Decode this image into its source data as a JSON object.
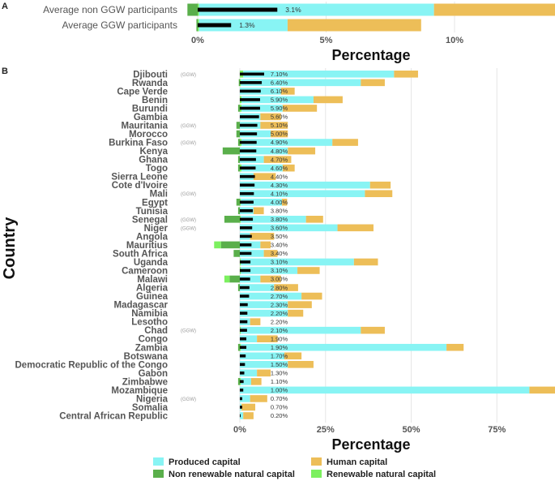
{
  "colors": {
    "produced": "#88F4F4",
    "human": "#EDBE58",
    "nonrenewable": "#5AAF4B",
    "renewable": "#7CF05F",
    "marker": "#000000",
    "grid": "#E6E6E6"
  },
  "panel_a_label": "A",
  "panel_b_label": "B",
  "ggw_tag": "(GGW)",
  "chart_data": [
    {
      "type": "bar",
      "orientation": "horizontal-stacked",
      "title": "",
      "xlabel": "Percentage",
      "ylabel": "",
      "xlim": [
        -1,
        14.2
      ],
      "xticks": [
        "0%",
        "5%",
        "10%"
      ],
      "xtick_values": [
        0,
        5,
        10
      ],
      "grid": true,
      "series_order": [
        "nonrenewable",
        "renewable",
        "produced",
        "human"
      ],
      "categories": [
        "Average non GGW participants",
        "Average GGW participants"
      ],
      "series": [
        {
          "name": "Non renewable natural capital",
          "values": [
            -0.4,
            -0.05
          ]
        },
        {
          "name": "Renewable natural capital",
          "values": [
            0.05,
            0.05
          ]
        },
        {
          "name": "Produced capital",
          "values": [
            9.15,
            3.45
          ]
        },
        {
          "name": "Human capital",
          "values": [
            5.0,
            5.2
          ]
        }
      ],
      "marker_values": [
        3.1,
        1.3
      ],
      "labels": [
        "3.1%",
        "1.3%"
      ]
    },
    {
      "type": "bar",
      "orientation": "horizontal-stacked",
      "title": "",
      "xlabel": "Percentage",
      "ylabel": "Country",
      "xlim": [
        -7,
        92
      ],
      "xticks": [
        "0%",
        "25%",
        "50%",
        "75%"
      ],
      "xtick_values": [
        0,
        25,
        50,
        75
      ],
      "grid": true,
      "legend": {
        "position": "bottom",
        "entries": [
          "Produced capital",
          "Human capital",
          "Non renewable natural capital",
          "Renewable natural capital"
        ]
      },
      "countries": [
        {
          "name": "Djibouti",
          "ggw": true,
          "nonrenewable": 0,
          "renewable": 1,
          "produced": 44,
          "human": 7,
          "marker": 7.1,
          "label": "7.10%"
        },
        {
          "name": "Rwanda",
          "ggw": false,
          "nonrenewable": -0.3,
          "renewable": 0.3,
          "produced": 35,
          "human": 7,
          "marker": 6.4,
          "label": "6.40%"
        },
        {
          "name": "Cape Verde",
          "ggw": false,
          "nonrenewable": 0,
          "renewable": 0,
          "produced": 12,
          "human": 4,
          "marker": 6.1,
          "label": "6.10%"
        },
        {
          "name": "Benin",
          "ggw": false,
          "nonrenewable": 0,
          "renewable": 0.5,
          "produced": 21,
          "human": 8.5,
          "marker": 5.9,
          "label": "5.90%"
        },
        {
          "name": "Burundi",
          "ggw": false,
          "nonrenewable": -0.5,
          "renewable": 0.5,
          "produced": 12,
          "human": 10,
          "marker": 5.9,
          "label": "5.90%"
        },
        {
          "name": "Gambia",
          "ggw": false,
          "nonrenewable": 0,
          "renewable": 0,
          "produced": 6,
          "human": 6,
          "marker": 5.6,
          "label": "5.60%"
        },
        {
          "name": "Mauritania",
          "ggw": true,
          "nonrenewable": -1,
          "renewable": 0,
          "produced": 6,
          "human": 8,
          "marker": 5.1,
          "label": "5.10%"
        },
        {
          "name": "Morocco",
          "ggw": false,
          "nonrenewable": -1,
          "renewable": 0,
          "produced": 9,
          "human": 5,
          "marker": 5.0,
          "label": "5.00%"
        },
        {
          "name": "Burkina Faso",
          "ggw": true,
          "nonrenewable": -0.5,
          "renewable": 0.5,
          "produced": 26.5,
          "human": 7.5,
          "marker": 4.9,
          "label": "4.90%"
        },
        {
          "name": "Kenya",
          "ggw": false,
          "nonrenewable": -5,
          "renewable": 0,
          "produced": 14,
          "human": 8,
          "marker": 4.8,
          "label": "4.80%"
        },
        {
          "name": "Ghana",
          "ggw": false,
          "nonrenewable": -0.5,
          "renewable": 0,
          "produced": 7,
          "human": 8,
          "marker": 4.7,
          "label": "4.70%"
        },
        {
          "name": "Togo",
          "ggw": false,
          "nonrenewable": -0.5,
          "renewable": 0.5,
          "produced": 12,
          "human": 3.5,
          "marker": 4.6,
          "label": "4.60%"
        },
        {
          "name": "Sierra Leone",
          "ggw": false,
          "nonrenewable": 0,
          "renewable": 0,
          "produced": 4,
          "human": 6.5,
          "marker": 4.4,
          "label": "4.40%"
        },
        {
          "name": "Cote d'Ivoire",
          "ggw": false,
          "nonrenewable": 0,
          "renewable": 0,
          "produced": 38,
          "human": 6,
          "marker": 4.3,
          "label": "4.30%"
        },
        {
          "name": "Mali",
          "ggw": true,
          "nonrenewable": 0,
          "renewable": 0,
          "produced": 36.5,
          "human": 8,
          "marker": 4.1,
          "label": "4.10%"
        },
        {
          "name": "Egypt",
          "ggw": false,
          "nonrenewable": -1,
          "renewable": 0.3,
          "produced": 12,
          "human": 1.5,
          "marker": 4.0,
          "label": "4.00%"
        },
        {
          "name": "Tunisia",
          "ggw": false,
          "nonrenewable": -0.5,
          "renewable": 0,
          "produced": 4,
          "human": 3,
          "marker": 3.8,
          "label": "3.80%"
        },
        {
          "name": "Senegal",
          "ggw": true,
          "nonrenewable": -4.5,
          "renewable": 0.3,
          "produced": 19,
          "human": 5,
          "marker": 3.8,
          "label": "3.80%"
        },
        {
          "name": "Niger",
          "ggw": true,
          "nonrenewable": 0,
          "renewable": 0,
          "produced": 28.5,
          "human": 10.5,
          "marker": 3.6,
          "label": "3.60%"
        },
        {
          "name": "Angola",
          "ggw": false,
          "nonrenewable": 0,
          "renewable": 0,
          "produced": 3,
          "human": 7,
          "marker": 3.5,
          "label": "3.50%"
        },
        {
          "name": "Mauritius",
          "ggw": false,
          "nonrenewable": -5.5,
          "renewable": -2,
          "produced": 6,
          "human": 3,
          "marker": 3.4,
          "label": "3.40%"
        },
        {
          "name": "South Africa",
          "ggw": false,
          "nonrenewable": -1.8,
          "renewable": 0,
          "produced": 7,
          "human": 4,
          "marker": 3.4,
          "label": "3.40%"
        },
        {
          "name": "Uganda",
          "ggw": false,
          "nonrenewable": 0,
          "renewable": 0.3,
          "produced": 33,
          "human": 7,
          "marker": 3.1,
          "label": "3.10%"
        },
        {
          "name": "Cameroon",
          "ggw": false,
          "nonrenewable": 0,
          "renewable": 0.3,
          "produced": 16.5,
          "human": 6.5,
          "marker": 3.1,
          "label": "3.10%"
        },
        {
          "name": "Malawi",
          "ggw": false,
          "nonrenewable": -3,
          "renewable": -1.5,
          "produced": 6,
          "human": 6,
          "marker": 3.0,
          "label": "3.00%"
        },
        {
          "name": "Algeria",
          "ggw": false,
          "nonrenewable": -0.5,
          "renewable": 0,
          "produced": 10,
          "human": 7,
          "marker": 2.8,
          "label": "2.80%"
        },
        {
          "name": "Guinea",
          "ggw": false,
          "nonrenewable": 0,
          "renewable": 0,
          "produced": 18,
          "human": 6,
          "marker": 2.7,
          "label": "2.70%"
        },
        {
          "name": "Madagascar",
          "ggw": false,
          "nonrenewable": 0,
          "renewable": 0,
          "produced": 14,
          "human": 7,
          "marker": 2.3,
          "label": "2.30%"
        },
        {
          "name": "Namibia",
          "ggw": false,
          "nonrenewable": 0,
          "renewable": 0,
          "produced": 14,
          "human": 4.5,
          "marker": 2.2,
          "label": "2.20%"
        },
        {
          "name": "Lesotho",
          "ggw": false,
          "nonrenewable": 0,
          "renewable": 0,
          "produced": 3,
          "human": 3,
          "marker": 2.2,
          "label": "2.20%"
        },
        {
          "name": "Chad",
          "ggw": true,
          "nonrenewable": 0,
          "renewable": 0.3,
          "produced": 35,
          "human": 7,
          "marker": 2.1,
          "label": "2.10%"
        },
        {
          "name": "Congo",
          "ggw": false,
          "nonrenewable": 0,
          "renewable": 0,
          "produced": 5,
          "human": 6,
          "marker": 1.9,
          "label": "1.90%"
        },
        {
          "name": "Zambia",
          "ggw": false,
          "nonrenewable": -0.5,
          "renewable": 0.3,
          "produced": 60,
          "human": 5,
          "marker": 1.9,
          "label": "1.90%"
        },
        {
          "name": "Botswana",
          "ggw": false,
          "nonrenewable": 0,
          "renewable": 0,
          "produced": 13,
          "human": 5,
          "marker": 1.7,
          "label": "1.70%"
        },
        {
          "name": "Democratic Republic of the Congo",
          "ggw": false,
          "nonrenewable": 0,
          "renewable": 0,
          "produced": 14,
          "human": 7.5,
          "marker": 1.5,
          "label": "1.50%"
        },
        {
          "name": "Gabon",
          "ggw": false,
          "nonrenewable": 0,
          "renewable": 0,
          "produced": 5,
          "human": 4,
          "marker": 1.3,
          "label": "1.30%"
        },
        {
          "name": "Zimbabwe",
          "ggw": false,
          "nonrenewable": -0.5,
          "renewable": 0.3,
          "produced": 3,
          "human": 3,
          "marker": 1.1,
          "label": "1.10%"
        },
        {
          "name": "Mozambique",
          "ggw": false,
          "nonrenewable": 0,
          "renewable": 0,
          "produced": 84.5,
          "human": 7.5,
          "marker": 1.0,
          "label": "1.00%"
        },
        {
          "name": "Nigeria",
          "ggw": true,
          "nonrenewable": 0,
          "renewable": 0,
          "produced": 3,
          "human": 5,
          "marker": 0.7,
          "label": "0.70%"
        },
        {
          "name": "Somalia",
          "ggw": false,
          "nonrenewable": 0,
          "renewable": 0,
          "produced": 0.5,
          "human": 4,
          "marker": 0.7,
          "label": "0.70%"
        },
        {
          "name": "Central African Republic",
          "ggw": false,
          "nonrenewable": 0,
          "renewable": 0,
          "produced": 1,
          "human": 3,
          "marker": 0.2,
          "label": "0.20%"
        }
      ]
    }
  ]
}
